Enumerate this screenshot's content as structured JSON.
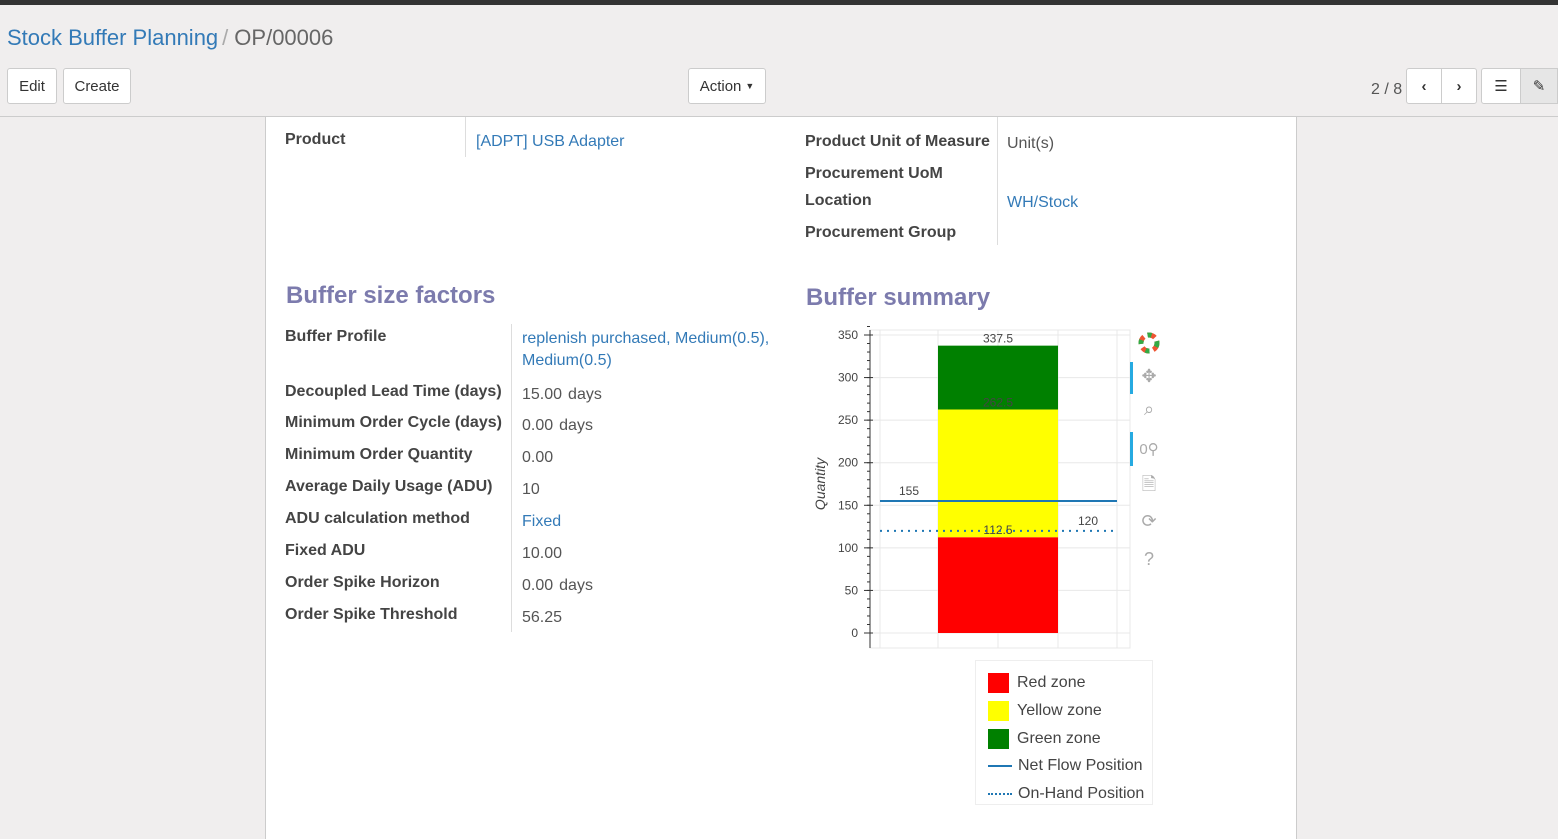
{
  "breadcrumb": {
    "parent": "Stock Buffer Planning",
    "current": "OP/00006"
  },
  "toolbar": {
    "edit": "Edit",
    "create": "Create",
    "action": "Action",
    "pager": "2 / 8"
  },
  "form": {
    "product_label": "Product",
    "product_value": "[ADPT] USB Adapter",
    "uom_label": "Product Unit of Measure",
    "uom_value": "Unit(s)",
    "proc_uom_label": "Procurement UoM",
    "location_label": "Location",
    "location_value": "WH/Stock",
    "proc_group_label": "Procurement Group"
  },
  "factors": {
    "title": "Buffer size factors",
    "rows": [
      {
        "label": "Buffer Profile",
        "value": "replenish purchased, Medium(0.5), Medium(0.5)",
        "link": true,
        "unit": ""
      },
      {
        "label": "Decoupled Lead Time (days)",
        "value": "15.00",
        "unit": "days"
      },
      {
        "label": "Minimum Order Cycle (days)",
        "value": "0.00",
        "unit": "days"
      },
      {
        "label": "Minimum Order Quantity",
        "value": "0.00",
        "unit": ""
      },
      {
        "label": "Average Daily Usage (ADU)",
        "value": "10",
        "unit": ""
      },
      {
        "label": "ADU calculation method",
        "value": "Fixed",
        "link": true,
        "unit": ""
      },
      {
        "label": "Fixed ADU",
        "value": "10.00",
        "unit": ""
      },
      {
        "label": "Order Spike Horizon",
        "value": "0.00",
        "unit": "days"
      },
      {
        "label": "Order Spike Threshold",
        "value": "56.25",
        "unit": ""
      }
    ]
  },
  "summary": {
    "title": "Buffer summary"
  },
  "chart_data": {
    "type": "bar",
    "ylabel": "Quantity",
    "ylim": [
      0,
      350
    ],
    "yticks": [
      0,
      50,
      100,
      150,
      200,
      250,
      300,
      350
    ],
    "grid": true,
    "legend_placement": "bottom",
    "stacked_zones": [
      {
        "name": "Red zone",
        "from": 0,
        "to": 112.5,
        "color": "#ff0000"
      },
      {
        "name": "Yellow zone",
        "from": 112.5,
        "to": 262.5,
        "color": "#ffff00"
      },
      {
        "name": "Green zone",
        "from": 262.5,
        "to": 337.5,
        "color": "#008000"
      }
    ],
    "bar_labels": [
      "112.5",
      "262.5",
      "337.5"
    ],
    "lines": [
      {
        "name": "Net Flow Position",
        "value": 155,
        "style": "solid",
        "color": "#1f77b4",
        "label": "155"
      },
      {
        "name": "On-Hand Position",
        "value": 120,
        "style": "dotted",
        "color": "#1f77b4",
        "label": "120"
      }
    ]
  }
}
